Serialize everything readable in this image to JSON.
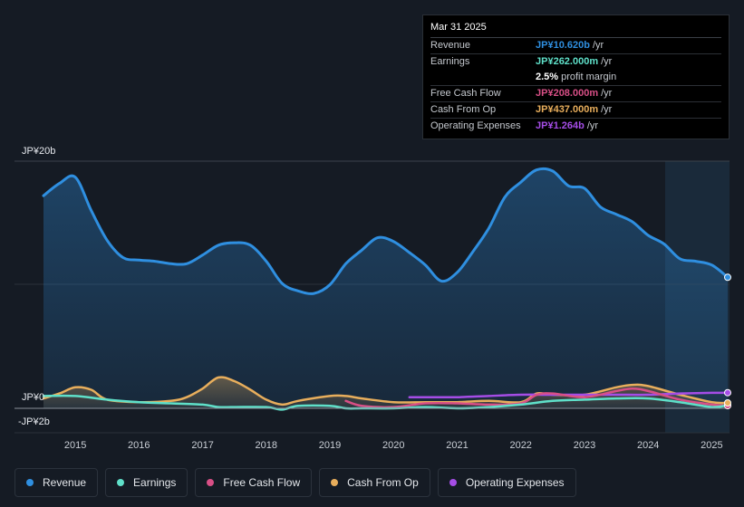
{
  "tooltip": {
    "date": "Mar 31 2025",
    "rows": [
      {
        "label": "Revenue",
        "value": "JP¥10.620b",
        "unit": "/yr",
        "color": "#2f8fe0"
      },
      {
        "label": "Earnings",
        "value": "JP¥262.000m",
        "unit": "/yr",
        "color": "#5fe0c9"
      },
      {
        "label": "",
        "value": "2.5%",
        "unit": "profit margin",
        "color": "#ffffff"
      },
      {
        "label": "Free Cash Flow",
        "value": "JP¥208.000m",
        "unit": "/yr",
        "color": "#d84f86"
      },
      {
        "label": "Cash From Op",
        "value": "JP¥437.000m",
        "unit": "/yr",
        "color": "#e8ae5c"
      },
      {
        "label": "Operating Expenses",
        "value": "JP¥1.264b",
        "unit": "/yr",
        "color": "#a54de6"
      }
    ]
  },
  "legend": [
    {
      "label": "Revenue",
      "color": "#2f8fe0"
    },
    {
      "label": "Earnings",
      "color": "#5fe0c9"
    },
    {
      "label": "Free Cash Flow",
      "color": "#d84f86"
    },
    {
      "label": "Cash From Op",
      "color": "#e8ae5c"
    },
    {
      "label": "Operating Expenses",
      "color": "#a54de6"
    }
  ],
  "chart_data": {
    "type": "area",
    "title": "",
    "xlabel": "",
    "ylabel": "",
    "y_tick_labels": [
      "JP¥20b",
      "JP¥0",
      "-JP¥2b"
    ],
    "ylim": [
      -2,
      20
    ],
    "xlim": [
      2014.5,
      2025.25
    ],
    "x_tick_labels": [
      "2015",
      "2016",
      "2017",
      "2018",
      "2019",
      "2020",
      "2021",
      "2022",
      "2023",
      "2024",
      "2025"
    ],
    "x_ticks": [
      2015,
      2016,
      2017,
      2018,
      2019,
      2020,
      2021,
      2022,
      2023,
      2024,
      2025
    ],
    "forecast_region_start": 2024.25,
    "units": "JP¥ billions",
    "series": [
      {
        "name": "Revenue",
        "color": "#2f8fe0",
        "fill": true,
        "x": [
          2014.5,
          2014.75,
          2015.0,
          2015.25,
          2015.5,
          2015.75,
          2016.0,
          2016.25,
          2016.5,
          2016.75,
          2017.0,
          2017.25,
          2017.5,
          2017.75,
          2018.0,
          2018.25,
          2018.5,
          2018.75,
          2019.0,
          2019.25,
          2019.5,
          2019.75,
          2020.0,
          2020.25,
          2020.5,
          2020.75,
          2021.0,
          2021.25,
          2021.5,
          2021.75,
          2022.0,
          2022.25,
          2022.5,
          2022.75,
          2023.0,
          2023.25,
          2023.5,
          2023.75,
          2024.0,
          2024.25,
          2024.5,
          2024.75,
          2025.0,
          2025.25
        ],
        "values": [
          17.2,
          18.2,
          18.7,
          16.0,
          13.6,
          12.2,
          12.0,
          11.9,
          11.7,
          11.7,
          12.4,
          13.2,
          13.4,
          13.2,
          11.9,
          10.1,
          9.5,
          9.3,
          10.0,
          11.7,
          12.8,
          13.8,
          13.5,
          12.6,
          11.6,
          10.3,
          11.0,
          12.7,
          14.6,
          17.1,
          18.3,
          19.3,
          19.2,
          18.0,
          17.8,
          16.3,
          15.7,
          15.1,
          14.0,
          13.3,
          12.1,
          11.9,
          11.6,
          10.6
        ]
      },
      {
        "name": "Earnings",
        "color": "#5fe0c9",
        "fill": false,
        "x": [
          2014.5,
          2015.0,
          2015.5,
          2016.0,
          2016.5,
          2017.0,
          2017.25,
          2017.5,
          2018.0,
          2018.25,
          2018.5,
          2019.0,
          2019.25,
          2019.5,
          2020.0,
          2020.5,
          2021.0,
          2021.5,
          2022.0,
          2022.5,
          2023.0,
          2023.5,
          2024.0,
          2024.5,
          2025.0,
          2025.25
        ],
        "values": [
          1.0,
          1.0,
          0.7,
          0.5,
          0.4,
          0.3,
          0.1,
          0.1,
          0.1,
          -0.1,
          0.2,
          0.2,
          0.0,
          0.0,
          0.0,
          0.1,
          0.0,
          0.1,
          0.3,
          0.6,
          0.7,
          0.8,
          0.8,
          0.5,
          0.1,
          0.26
        ]
      },
      {
        "name": "Free Cash Flow",
        "color": "#d84f86",
        "fill": false,
        "x": [
          2019.25,
          2019.5,
          2020.0,
          2020.5,
          2021.0,
          2021.5,
          2022.0,
          2022.25,
          2022.5,
          2023.0,
          2023.5,
          2023.75,
          2024.0,
          2024.5,
          2025.0,
          2025.25
        ],
        "values": [
          0.6,
          0.2,
          0.1,
          0.4,
          0.4,
          0.3,
          0.4,
          1.1,
          1.2,
          0.9,
          1.4,
          1.6,
          1.4,
          0.7,
          0.3,
          0.21
        ]
      },
      {
        "name": "Cash From Op",
        "color": "#e8ae5c",
        "fill": true,
        "x": [
          2014.5,
          2014.75,
          2015.0,
          2015.25,
          2015.5,
          2016.0,
          2016.5,
          2016.75,
          2017.0,
          2017.25,
          2017.5,
          2017.75,
          2018.0,
          2018.25,
          2018.5,
          2019.0,
          2019.25,
          2019.5,
          2020.0,
          2020.5,
          2021.0,
          2021.5,
          2022.0,
          2022.25,
          2022.5,
          2023.0,
          2023.5,
          2023.75,
          2024.0,
          2024.5,
          2025.0,
          2025.25
        ],
        "values": [
          0.8,
          1.2,
          1.7,
          1.5,
          0.7,
          0.5,
          0.6,
          0.9,
          1.6,
          2.5,
          2.2,
          1.5,
          0.7,
          0.3,
          0.6,
          1.0,
          1.0,
          0.8,
          0.5,
          0.5,
          0.5,
          0.6,
          0.5,
          1.2,
          1.1,
          1.1,
          1.7,
          1.9,
          1.8,
          1.1,
          0.5,
          0.44
        ]
      },
      {
        "name": "Operating Expenses",
        "color": "#a54de6",
        "fill": false,
        "x": [
          2020.25,
          2020.5,
          2021.0,
          2021.5,
          2022.0,
          2022.5,
          2023.0,
          2023.5,
          2024.0,
          2024.5,
          2025.0,
          2025.25
        ],
        "values": [
          0.9,
          0.9,
          0.9,
          1.0,
          1.1,
          1.1,
          1.1,
          1.1,
          1.1,
          1.2,
          1.25,
          1.264
        ]
      }
    ]
  }
}
